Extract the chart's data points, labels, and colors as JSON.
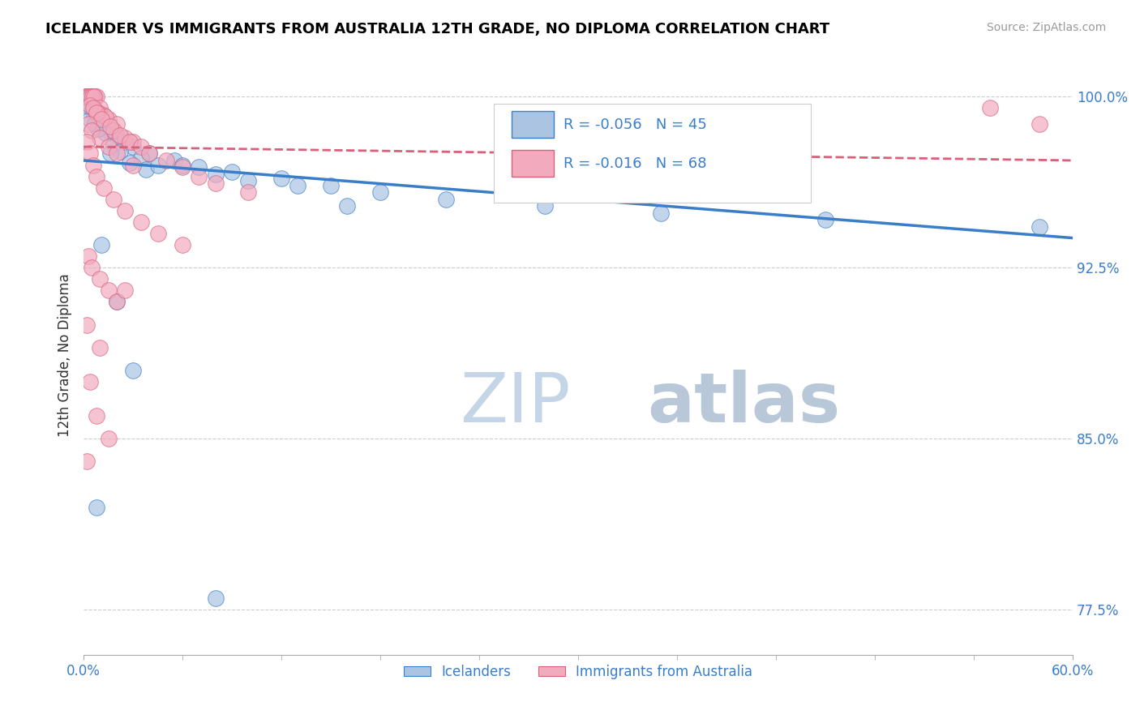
{
  "title": "ICELANDER VS IMMIGRANTS FROM AUSTRALIA 12TH GRADE, NO DIPLOMA CORRELATION CHART",
  "source": "Source: ZipAtlas.com",
  "ylabel": "12th Grade, No Diploma",
  "legend_label1": "Icelanders",
  "legend_label2": "Immigrants from Australia",
  "R1": -0.056,
  "N1": 45,
  "R2": -0.016,
  "N2": 68,
  "xlim": [
    0.0,
    60.0
  ],
  "ylim": [
    75.5,
    101.8
  ],
  "yticks": [
    77.5,
    85.0,
    92.5,
    100.0
  ],
  "color_blue": "#aac4e2",
  "color_pink": "#f2aabe",
  "trendline_blue": "#3a7dc9",
  "trendline_pink": "#d9607a",
  "watermark_zip": "ZIP",
  "watermark_atlas": "atlas",
  "watermark_color": "#d0dff0",
  "blue_scatter": [
    [
      0.3,
      99.8
    ],
    [
      0.5,
      99.5
    ],
    [
      0.8,
      99.2
    ],
    [
      1.0,
      98.9
    ],
    [
      0.2,
      99.7
    ],
    [
      1.5,
      98.5
    ],
    [
      2.0,
      98.3
    ],
    [
      2.5,
      98.0
    ],
    [
      3.0,
      97.8
    ],
    [
      0.6,
      99.3
    ],
    [
      1.2,
      98.7
    ],
    [
      0.4,
      99.0
    ],
    [
      1.8,
      97.9
    ],
    [
      4.0,
      97.5
    ],
    [
      5.5,
      97.2
    ],
    [
      7.0,
      96.9
    ],
    [
      9.0,
      96.7
    ],
    [
      12.0,
      96.4
    ],
    [
      15.0,
      96.1
    ],
    [
      18.0,
      95.8
    ],
    [
      22.0,
      95.5
    ],
    [
      28.0,
      95.2
    ],
    [
      35.0,
      94.9
    ],
    [
      45.0,
      94.6
    ],
    [
      58.0,
      94.3
    ],
    [
      3.5,
      97.3
    ],
    [
      6.0,
      97.0
    ],
    [
      8.0,
      96.6
    ],
    [
      10.0,
      96.3
    ],
    [
      13.0,
      96.1
    ],
    [
      0.7,
      98.8
    ],
    [
      1.3,
      98.4
    ],
    [
      0.9,
      98.6
    ],
    [
      2.2,
      97.6
    ],
    [
      1.6,
      97.5
    ],
    [
      3.8,
      96.8
    ],
    [
      2.8,
      97.1
    ],
    [
      0.15,
      99.6
    ],
    [
      4.5,
      97.0
    ],
    [
      16.0,
      95.2
    ],
    [
      1.1,
      93.5
    ],
    [
      2.0,
      91.0
    ],
    [
      0.8,
      82.0
    ],
    [
      8.0,
      78.0
    ],
    [
      3.0,
      88.0
    ]
  ],
  "pink_scatter": [
    [
      0.1,
      100.0
    ],
    [
      0.2,
      100.0
    ],
    [
      0.3,
      100.0
    ],
    [
      0.4,
      100.0
    ],
    [
      0.5,
      100.0
    ],
    [
      0.6,
      100.0
    ],
    [
      0.7,
      100.0
    ],
    [
      0.8,
      100.0
    ],
    [
      0.15,
      100.0
    ],
    [
      0.25,
      100.0
    ],
    [
      0.35,
      100.0
    ],
    [
      0.45,
      100.0
    ],
    [
      0.55,
      100.0
    ],
    [
      0.65,
      100.0
    ],
    [
      1.0,
      99.5
    ],
    [
      1.2,
      99.2
    ],
    [
      1.5,
      99.0
    ],
    [
      2.0,
      98.8
    ],
    [
      0.9,
      99.3
    ],
    [
      1.8,
      98.5
    ],
    [
      2.5,
      98.2
    ],
    [
      3.0,
      98.0
    ],
    [
      0.7,
      99.4
    ],
    [
      1.3,
      99.1
    ],
    [
      0.4,
      99.6
    ],
    [
      0.6,
      99.5
    ],
    [
      0.8,
      99.3
    ],
    [
      1.1,
      99.0
    ],
    [
      1.6,
      98.7
    ],
    [
      2.2,
      98.3
    ],
    [
      2.8,
      98.0
    ],
    [
      3.5,
      97.8
    ],
    [
      4.0,
      97.5
    ],
    [
      5.0,
      97.2
    ],
    [
      6.0,
      96.9
    ],
    [
      7.0,
      96.5
    ],
    [
      8.0,
      96.2
    ],
    [
      10.0,
      95.8
    ],
    [
      0.3,
      98.8
    ],
    [
      0.5,
      98.5
    ],
    [
      1.0,
      98.2
    ],
    [
      1.5,
      97.8
    ],
    [
      2.0,
      97.5
    ],
    [
      3.0,
      97.0
    ],
    [
      0.2,
      98.0
    ],
    [
      0.4,
      97.5
    ],
    [
      0.6,
      97.0
    ],
    [
      0.8,
      96.5
    ],
    [
      1.2,
      96.0
    ],
    [
      1.8,
      95.5
    ],
    [
      2.5,
      95.0
    ],
    [
      3.5,
      94.5
    ],
    [
      4.5,
      94.0
    ],
    [
      6.0,
      93.5
    ],
    [
      0.3,
      93.0
    ],
    [
      0.5,
      92.5
    ],
    [
      1.0,
      92.0
    ],
    [
      1.5,
      91.5
    ],
    [
      2.0,
      91.0
    ],
    [
      0.2,
      90.0
    ],
    [
      1.0,
      89.0
    ],
    [
      0.4,
      87.5
    ],
    [
      0.8,
      86.0
    ],
    [
      1.5,
      85.0
    ],
    [
      0.2,
      84.0
    ],
    [
      2.5,
      91.5
    ],
    [
      55.0,
      99.5
    ],
    [
      58.0,
      98.8
    ]
  ],
  "blue_trend": [
    0.0,
    60.0,
    97.2,
    93.8
  ],
  "pink_trend": [
    0.0,
    60.0,
    97.8,
    97.2
  ]
}
